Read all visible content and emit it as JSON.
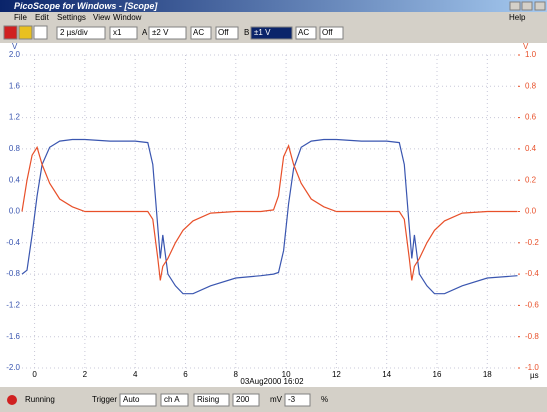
{
  "window": {
    "title": "PicoScope for Windows - [Scope]"
  },
  "menu": [
    "File",
    "Edit",
    "Settings",
    "View",
    "Window",
    "Help"
  ],
  "toolbar": {
    "timebase": "2 µs/div",
    "multiplier": "x1",
    "channel_a": "A",
    "range_a": "±2 V",
    "coupling_a": "AC",
    "offset_a": "Off",
    "channel_b": "B",
    "range_b": "±1 V",
    "coupling_b": "AC",
    "offset_b": "Off"
  },
  "chart_data": {
    "type": "line",
    "x_label": "µs",
    "y_label": "V",
    "y2_label": "V",
    "timestamp": "03Aug2000 16:02",
    "x": [
      -0.5,
      -0.3,
      -0.1,
      0.1,
      0.3,
      0.6,
      1.0,
      1.5,
      2.0,
      3.0,
      4.0,
      4.5,
      4.7,
      4.9,
      5.0,
      5.1,
      5.3,
      5.6,
      5.9,
      6.3,
      7.0,
      8.0,
      9.0,
      9.5,
      9.7,
      9.9,
      10.1,
      10.3,
      10.6,
      11.0,
      11.5,
      12.0,
      13.0,
      14.0,
      14.5,
      14.7,
      14.9,
      15.0,
      15.1,
      15.3,
      15.6,
      15.9,
      16.3,
      17.0,
      18.0,
      19.2
    ],
    "xlim": [
      -0.5,
      19.3
    ],
    "xticks": [
      0,
      2,
      4,
      6,
      8,
      10,
      12,
      14,
      16,
      18
    ],
    "ylim": [
      -2,
      2
    ],
    "yticks": [
      {
        "value": 2,
        "label": "2.0"
      },
      1.6,
      1.2,
      0.8,
      0.4,
      {
        "value": 0,
        "label": "0.0"
      },
      -0.4,
      -0.8,
      -1.2,
      -1.6,
      {
        "value": -2,
        "label": "-2.0"
      }
    ],
    "y2lim": [
      -1,
      1
    ],
    "y2ticks": [
      {
        "value": 1,
        "label": "1.0"
      },
      0.8,
      0.6,
      0.4,
      0.2,
      {
        "value": 0,
        "label": "0.0"
      },
      -0.2,
      -0.4,
      -0.6,
      -0.8,
      {
        "value": -1,
        "label": "-1.0"
      }
    ],
    "grid": true,
    "series": [
      {
        "color": "#3a56b0",
        "values": [
          -0.8,
          -0.75,
          -0.3,
          0.2,
          0.6,
          0.82,
          0.9,
          0.92,
          0.92,
          0.9,
          0.9,
          0.88,
          0.6,
          -0.2,
          -0.6,
          -0.3,
          -0.8,
          -0.95,
          -1.05,
          -1.05,
          -0.95,
          -0.85,
          -0.82,
          -0.8,
          -0.78,
          -0.5,
          0.1,
          0.55,
          0.82,
          0.9,
          0.92,
          0.92,
          0.9,
          0.9,
          0.88,
          0.6,
          -0.2,
          -0.6,
          -0.3,
          -0.8,
          -0.95,
          -1.05,
          -1.05,
          -0.95,
          -0.85,
          -0.82
        ]
      },
      {
        "color": "#e8502a",
        "axis": "y2",
        "values": [
          0.0,
          0.2,
          0.36,
          0.41,
          0.3,
          0.18,
          0.08,
          0.03,
          0.0,
          0.0,
          0.0,
          0.0,
          -0.05,
          -0.3,
          -0.44,
          -0.35,
          -0.3,
          -0.2,
          -0.12,
          -0.06,
          -0.01,
          0.0,
          0.0,
          0.01,
          0.1,
          0.35,
          0.42,
          0.3,
          0.18,
          0.08,
          0.03,
          0.0,
          0.0,
          0.0,
          0.0,
          -0.05,
          -0.3,
          -0.44,
          -0.35,
          -0.3,
          -0.2,
          -0.12,
          -0.06,
          -0.01,
          0.0,
          0.0
        ]
      }
    ]
  },
  "status_bar": {
    "state": "Running",
    "trigger_label": "Trigger",
    "trigger_mode": "Auto",
    "trigger_channel": "ch A",
    "trigger_edge": "Rising",
    "trigger_level": "200",
    "level_unit": "mV",
    "delay": "-3",
    "delay_unit": "%"
  }
}
